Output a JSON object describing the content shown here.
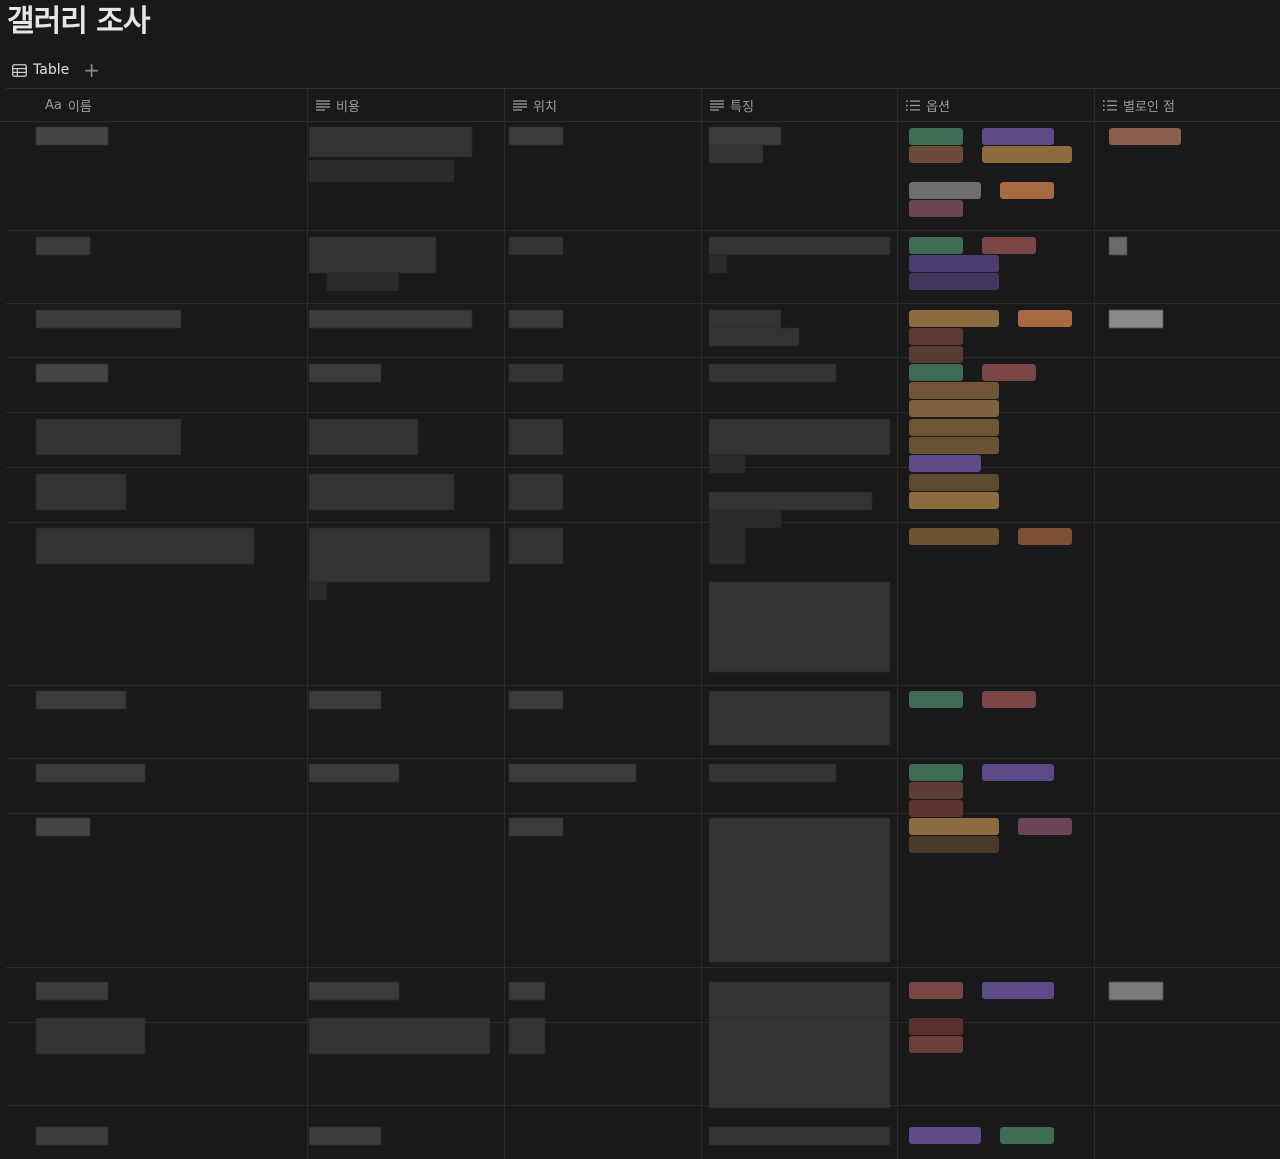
{
  "page": {
    "title": "갤러리 조사"
  },
  "view": {
    "tab_label": "Table",
    "add_label": "+"
  },
  "columns": [
    {
      "key": "name",
      "label": "이름",
      "prefix": "Aa",
      "icon": "title-icon"
    },
    {
      "key": "cost",
      "label": "비용",
      "icon": "text-lines-icon"
    },
    {
      "key": "location",
      "label": "위치",
      "icon": "text-lines-icon"
    },
    {
      "key": "feature",
      "label": "특징",
      "icon": "text-lines-icon"
    },
    {
      "key": "option",
      "label": "옵션",
      "icon": "list-icon"
    },
    {
      "key": "downside",
      "label": "별로인 점",
      "icon": "list-icon"
    }
  ],
  "colors": {
    "background": "#191919",
    "border": "#2e2e2e",
    "tag_green": "#3f6b54",
    "tag_purple": "#5e4a86",
    "tag_brown": "#6b4a3c",
    "tag_yellow": "#8c6c3e",
    "tag_orange": "#a7693f",
    "tag_gray": "#6e6e6e",
    "tag_pink": "#6d4457",
    "tag_red": "#7a4545"
  }
}
